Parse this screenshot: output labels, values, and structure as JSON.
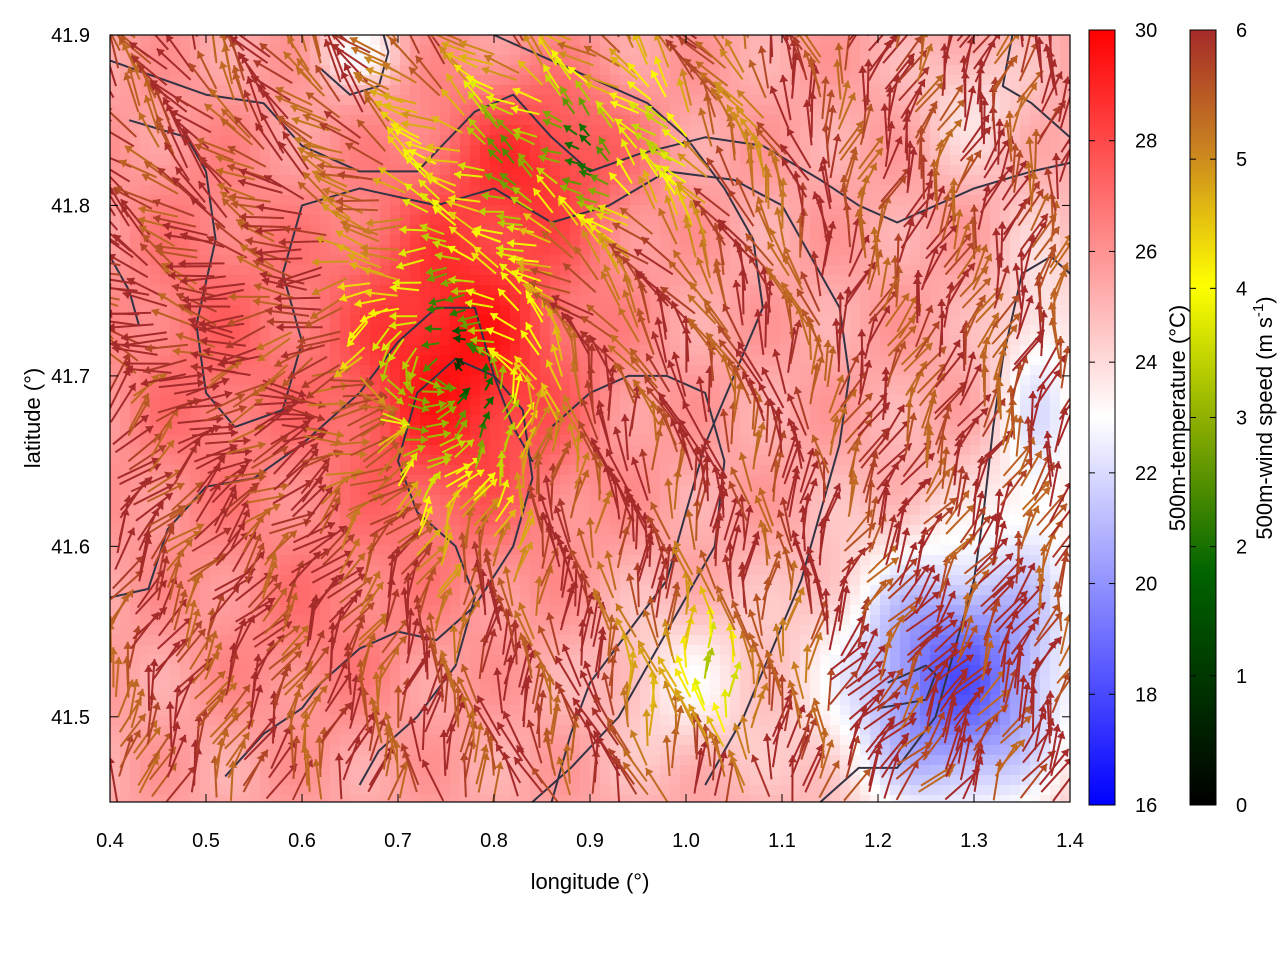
{
  "chart_data": {
    "type": "heatmap",
    "xlabel": "longitude (°)",
    "ylabel": "latitude (°)",
    "xlim": [
      0.4,
      1.4
    ],
    "ylim": [
      41.45,
      41.9
    ],
    "xticks": [
      "0.4",
      "0.5",
      "0.6",
      "0.7",
      "0.8",
      "0.9",
      "1.0",
      "1.1",
      "1.2",
      "1.3",
      "1.4"
    ],
    "yticks": [
      "41.5",
      "41.6",
      "41.7",
      "41.8",
      "41.9"
    ],
    "temperature_colorbar": {
      "label": "500m-temperature (°C)",
      "range": [
        16,
        30
      ],
      "ticks": [
        "16",
        "18",
        "20",
        "22",
        "24",
        "26",
        "28",
        "30"
      ],
      "colors": [
        "#0000ff",
        "#ffffff",
        "#ff0000"
      ]
    },
    "wind_colorbar": {
      "label_main": "500m-wind speed (m s",
      "label_sup": "-1",
      "label_end": ")",
      "range": [
        0,
        6
      ],
      "ticks": [
        "0",
        "1",
        "2",
        "3",
        "4",
        "5",
        "6"
      ],
      "colors": [
        "#000000",
        "#006400",
        "#90b000",
        "#ffff00",
        "#c88020",
        "#a52a2a"
      ]
    },
    "temperature_field": {
      "background": 25.5,
      "features": [
        {
          "name": "warm core",
          "lon": 0.76,
          "lat": 41.71,
          "delta": 4.0,
          "spread_lon": 0.13,
          "spread_lat": 0.1
        },
        {
          "name": "warm north",
          "lon": 0.85,
          "lat": 41.83,
          "delta": 2.5,
          "spread_lon": 0.1,
          "spread_lat": 0.05
        },
        {
          "name": "warm west",
          "lon": 0.5,
          "lat": 41.72,
          "delta": 1.5,
          "spread_lon": 0.1,
          "spread_lat": 0.12
        },
        {
          "name": "warm south-west",
          "lon": 0.62,
          "lat": 41.55,
          "delta": 1.0,
          "spread_lon": 0.1,
          "spread_lat": 0.06
        },
        {
          "name": "cold south-east",
          "lon": 1.28,
          "lat": 41.52,
          "delta": -7.0,
          "spread_lon": 0.12,
          "spread_lat": 0.08
        },
        {
          "name": "cold east",
          "lon": 1.37,
          "lat": 41.68,
          "delta": -3.0,
          "spread_lon": 0.05,
          "spread_lat": 0.1
        },
        {
          "name": "cool valley",
          "lon": 1.0,
          "lat": 41.52,
          "delta": -2.0,
          "spread_lon": 0.08,
          "spread_lat": 0.05
        },
        {
          "name": "cool north",
          "lon": 0.66,
          "lat": 41.89,
          "delta": -2.5,
          "spread_lon": 0.04,
          "spread_lat": 0.02
        },
        {
          "name": "cool north-east",
          "lon": 1.3,
          "lat": 41.86,
          "delta": -1.5,
          "spread_lon": 0.06,
          "spread_lat": 0.04
        }
      ]
    },
    "wind_field": {
      "grid_step_deg": [
        0.02,
        0.0095
      ],
      "regions": [
        {
          "name": "calm centre",
          "lon": 0.76,
          "lat": 41.7,
          "speed": 1.2,
          "spread_lon": 0.09,
          "spread_lat": 0.09
        },
        {
          "name": "calm north",
          "lon": 0.88,
          "lat": 41.83,
          "speed": 1.8,
          "spread_lon": 0.14,
          "spread_lat": 0.05
        },
        {
          "name": "moderate valley",
          "lon": 1.02,
          "lat": 41.52,
          "speed": 3.2,
          "spread_lon": 0.07,
          "spread_lat": 0.04
        }
      ],
      "base_speed": 5.8
    },
    "contours": [
      {
        "name": "terrain contour 1",
        "points": [
          [
            0.4,
            41.885
          ],
          [
            0.5,
            41.865
          ],
          [
            0.56,
            41.86
          ],
          [
            0.6,
            41.835
          ],
          [
            0.66,
            41.82
          ],
          [
            0.72,
            41.82
          ],
          [
            0.78,
            41.855
          ],
          [
            0.82,
            41.865
          ],
          [
            0.86,
            41.84
          ],
          [
            0.9,
            41.82
          ],
          [
            0.95,
            41.83
          ],
          [
            1.02,
            41.84
          ],
          [
            1.08,
            41.835
          ],
          [
            1.14,
            41.815
          ],
          [
            1.18,
            41.8
          ],
          [
            1.22,
            41.79
          ],
          [
            1.3,
            41.81
          ],
          [
            1.36,
            41.82
          ],
          [
            1.4,
            41.825
          ]
        ]
      },
      {
        "name": "terrain contour 2",
        "points": [
          [
            0.42,
            41.85
          ],
          [
            0.48,
            41.84
          ],
          [
            0.5,
            41.82
          ],
          [
            0.51,
            41.78
          ],
          [
            0.49,
            41.73
          ],
          [
            0.5,
            41.69
          ],
          [
            0.53,
            41.67
          ],
          [
            0.58,
            41.68
          ],
          [
            0.6,
            41.72
          ],
          [
            0.58,
            41.76
          ],
          [
            0.6,
            41.8
          ],
          [
            0.66,
            41.81
          ],
          [
            0.74,
            41.8
          ],
          [
            0.8,
            41.81
          ],
          [
            0.86,
            41.79
          ],
          [
            0.92,
            41.8
          ],
          [
            0.98,
            41.82
          ],
          [
            1.05,
            41.815
          ],
          [
            1.1,
            41.8
          ],
          [
            1.13,
            41.77
          ],
          [
            1.16,
            41.74
          ],
          [
            1.17,
            41.7
          ],
          [
            1.16,
            41.66
          ],
          [
            1.14,
            41.62
          ],
          [
            1.12,
            41.58
          ],
          [
            1.09,
            41.54
          ],
          [
            1.06,
            41.5
          ],
          [
            1.02,
            41.46
          ]
        ]
      },
      {
        "name": "terrain contour 3",
        "points": [
          [
            0.4,
            41.57
          ],
          [
            0.44,
            41.575
          ],
          [
            0.46,
            41.61
          ],
          [
            0.5,
            41.635
          ],
          [
            0.55,
            41.64
          ],
          [
            0.6,
            41.66
          ],
          [
            0.66,
            41.69
          ],
          [
            0.7,
            41.72
          ],
          [
            0.74,
            41.74
          ],
          [
            0.78,
            41.74
          ],
          [
            0.8,
            41.7
          ],
          [
            0.82,
            41.67
          ],
          [
            0.84,
            41.65
          ],
          [
            0.86,
            41.67
          ],
          [
            0.9,
            41.69
          ],
          [
            0.94,
            41.7
          ],
          [
            0.98,
            41.7
          ],
          [
            1.02,
            41.69
          ],
          [
            1.04,
            41.65
          ],
          [
            1.03,
            41.6
          ],
          [
            0.99,
            41.56
          ],
          [
            0.96,
            41.53
          ],
          [
            0.93,
            41.5
          ],
          [
            0.88,
            41.47
          ],
          [
            0.84,
            41.45
          ]
        ]
      },
      {
        "name": "terrain contour 4",
        "points": [
          [
            0.52,
            41.465
          ],
          [
            0.56,
            41.49
          ],
          [
            0.6,
            41.505
          ],
          [
            0.62,
            41.52
          ],
          [
            0.66,
            41.54
          ],
          [
            0.7,
            41.55
          ],
          [
            0.74,
            41.545
          ],
          [
            0.78,
            41.565
          ],
          [
            0.82,
            41.6
          ],
          [
            0.84,
            41.64
          ],
          [
            0.83,
            41.68
          ],
          [
            0.8,
            41.7
          ],
          [
            0.76,
            41.71
          ],
          [
            0.72,
            41.69
          ],
          [
            0.7,
            41.65
          ],
          [
            0.72,
            41.62
          ],
          [
            0.76,
            41.6
          ],
          [
            0.78,
            41.57
          ],
          [
            0.76,
            41.53
          ],
          [
            0.72,
            41.5
          ],
          [
            0.68,
            41.48
          ],
          [
            0.66,
            41.46
          ]
        ]
      },
      {
        "name": "terrain contour 5",
        "points": [
          [
            0.86,
            41.45
          ],
          [
            0.88,
            41.49
          ],
          [
            0.9,
            41.52
          ],
          [
            0.94,
            41.55
          ],
          [
            0.98,
            41.58
          ],
          [
            1.0,
            41.62
          ],
          [
            1.02,
            41.66
          ],
          [
            1.05,
            41.7
          ],
          [
            1.08,
            41.74
          ],
          [
            1.07,
            41.78
          ],
          [
            1.04,
            41.81
          ],
          [
            1.0,
            41.84
          ],
          [
            0.96,
            41.86
          ],
          [
            0.92,
            41.87
          ],
          [
            0.86,
            41.885
          ],
          [
            0.8,
            41.9
          ]
        ]
      },
      {
        "name": "terrain contour 6",
        "points": [
          [
            1.14,
            41.45
          ],
          [
            1.18,
            41.47
          ],
          [
            1.22,
            41.47
          ],
          [
            1.26,
            41.5
          ],
          [
            1.28,
            41.54
          ],
          [
            1.3,
            41.58
          ],
          [
            1.31,
            41.62
          ],
          [
            1.32,
            41.67
          ],
          [
            1.33,
            41.71
          ],
          [
            1.35,
            41.76
          ],
          [
            1.38,
            41.77
          ],
          [
            1.4,
            41.76
          ]
        ]
      },
      {
        "name": "terrain contour 7",
        "points": [
          [
            1.2,
            41.505
          ],
          [
            1.25,
            41.51
          ],
          [
            1.26,
            41.525
          ],
          [
            1.25,
            41.53
          ],
          [
            1.21,
            41.52
          ]
        ]
      },
      {
        "name": "terrain contour 8",
        "points": [
          [
            1.34,
            41.9
          ],
          [
            1.33,
            41.87
          ],
          [
            1.36,
            41.86
          ],
          [
            1.38,
            41.85
          ],
          [
            1.4,
            41.84
          ]
        ]
      },
      {
        "name": "terrain contour 9",
        "points": [
          [
            0.62,
            41.88
          ],
          [
            0.65,
            41.865
          ],
          [
            0.68,
            41.87
          ],
          [
            0.69,
            41.89
          ],
          [
            0.685,
            41.9
          ]
        ]
      },
      {
        "name": "terrain contour 10",
        "points": [
          [
            0.4,
            41.77
          ],
          [
            0.42,
            41.75
          ],
          [
            0.43,
            41.73
          ]
        ]
      }
    ]
  }
}
